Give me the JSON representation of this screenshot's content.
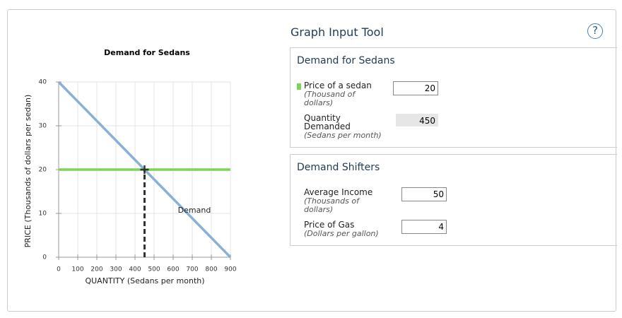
{
  "chart_data": {
    "type": "line",
    "title": "Demand for Sedans",
    "xlabel": "QUANTITY (Sedans per month)",
    "ylabel": "PRICE (Thousands of dollars per sedan)",
    "xlim": [
      0,
      900
    ],
    "ylim": [
      0,
      40
    ],
    "xticks": [
      0,
      100,
      200,
      300,
      400,
      500,
      600,
      700,
      800,
      900
    ],
    "yticks": [
      0,
      10,
      20,
      30,
      40
    ],
    "grid": true,
    "series": [
      {
        "name": "Demand",
        "color": "#8ab0d6",
        "x": [
          0,
          900
        ],
        "values": [
          40,
          0
        ]
      },
      {
        "color": "#7ed35a",
        "x": [
          0,
          900
        ],
        "values": [
          20,
          20
        ]
      },
      {
        "color": "#333333",
        "dash": true,
        "x": [
          450,
          450
        ],
        "values": [
          0,
          20
        ]
      }
    ]
  },
  "tool": {
    "title": "Graph Input Tool",
    "help": "?",
    "sections": [
      {
        "title": "Demand for Sedans",
        "rows": [
          {
            "label": "Price of a sedan",
            "unit": "(Thousand of dollars)",
            "value": 20
          },
          {
            "label": "Quantity Demanded",
            "unit": "(Sedans per month)",
            "value": 450
          }
        ]
      },
      {
        "title": "Demand Shifters",
        "rows": [
          {
            "label": "Average Income",
            "unit": "(Thousands of dollars)",
            "value": 50
          },
          {
            "label": "Price of Gas",
            "unit": "(Dollars per gallon)",
            "value": 4
          }
        ]
      }
    ]
  }
}
